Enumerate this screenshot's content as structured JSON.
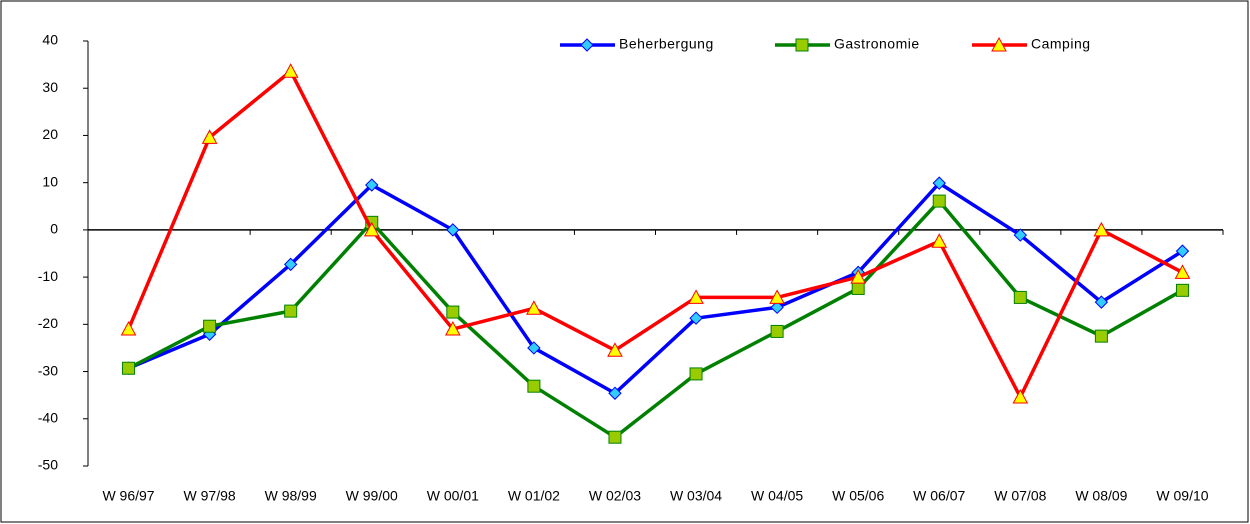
{
  "chart_data": {
    "type": "line",
    "categories": [
      "W 96/97",
      "W 97/98",
      "W 98/99",
      "W 99/00",
      "W 00/01",
      "W 01/02",
      "W 02/03",
      "W 03/04",
      "W 04/05",
      "W 05/06",
      "W 06/07",
      "W 07/08",
      "W 08/09",
      "W 09/10"
    ],
    "series": [
      {
        "name": "Beherbergung",
        "color": "#0000ff",
        "marker": "diamond",
        "marker_color": "#33ccff",
        "values": [
          -29.3,
          -22.1,
          -7.3,
          9.5,
          0,
          -25,
          -34.6,
          -18.7,
          -16.4,
          -9,
          9.9,
          -1.1,
          -15.3,
          -4.5
        ]
      },
      {
        "name": "Gastronomie",
        "color": "#008000",
        "marker": "square",
        "marker_color": "#99cc00",
        "values": [
          -29.3,
          -20.4,
          -17.2,
          1.6,
          -17.4,
          -33.1,
          -43.9,
          -30.5,
          -21.5,
          -12.4,
          6.1,
          -14.3,
          -22.5,
          -12.8
        ]
      },
      {
        "name": "Camping",
        "color": "#ff0000",
        "marker": "triangle",
        "marker_color": "#ffff00",
        "values": [
          -21,
          19.6,
          33.6,
          0,
          -21,
          -16.6,
          -25.5,
          -14.3,
          -14.3,
          -10,
          -2.4,
          -35.4,
          0,
          -9
        ]
      }
    ],
    "ylim": [
      -50,
      40
    ],
    "yticks": [
      -50,
      -40,
      -30,
      -20,
      -10,
      0,
      10,
      20,
      30,
      40
    ],
    "legend": "top-right"
  }
}
